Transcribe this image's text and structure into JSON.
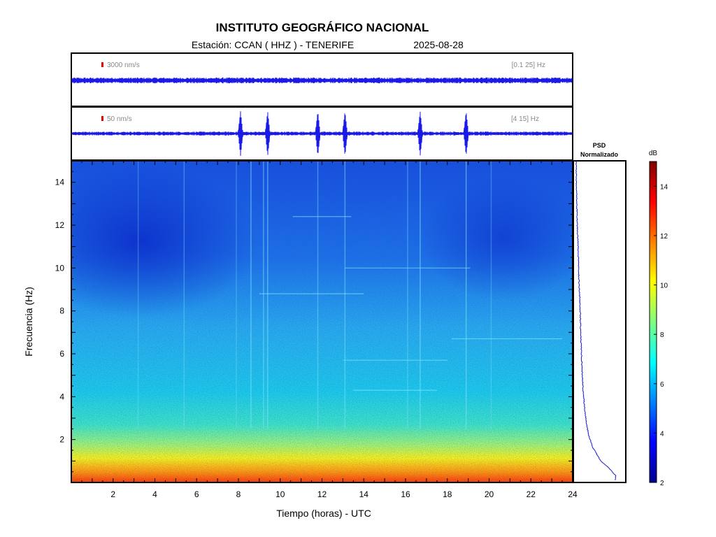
{
  "title": "INSTITUTO GEOGRÁFICO NACIONAL",
  "station": "Estación:  CCAN ( HHZ ) - TENERIFE",
  "date": "2025-08-28",
  "chart_data": [
    {
      "type": "line",
      "panel": "seismogram-broadband",
      "scale_label": "3000 nm/s",
      "filter_label": "[0.1 25] Hz",
      "events_hours": []
    },
    {
      "type": "line",
      "panel": "seismogram-filtered",
      "scale_label": "50 nm/s",
      "filter_label": "[4 15] Hz",
      "events_hours": [
        8.1,
        9.4,
        11.8,
        13.1,
        16.7,
        18.9
      ]
    },
    {
      "type": "heatmap",
      "panel": "spectrogram",
      "xlabel": "Tiempo (horas) - UTC",
      "ylabel": "Frecuencia  (Hz)",
      "xlim": [
        0,
        24
      ],
      "ylim": [
        0,
        15
      ],
      "xticks": [
        2,
        4,
        6,
        8,
        10,
        12,
        14,
        16,
        18,
        20,
        22,
        24
      ],
      "yticks": [
        2,
        4,
        6,
        8,
        10,
        12,
        14
      ]
    },
    {
      "type": "line",
      "panel": "psd",
      "title_line1": "PSD",
      "title_line2": "Normalizado",
      "ylim": [
        0,
        15
      ]
    },
    {
      "type": "heatmap",
      "panel": "colorbar",
      "unit": "dB",
      "range": [
        2,
        15
      ],
      "ticks": [
        2,
        4,
        6,
        8,
        10,
        12,
        14
      ],
      "colormap": "jet"
    }
  ]
}
